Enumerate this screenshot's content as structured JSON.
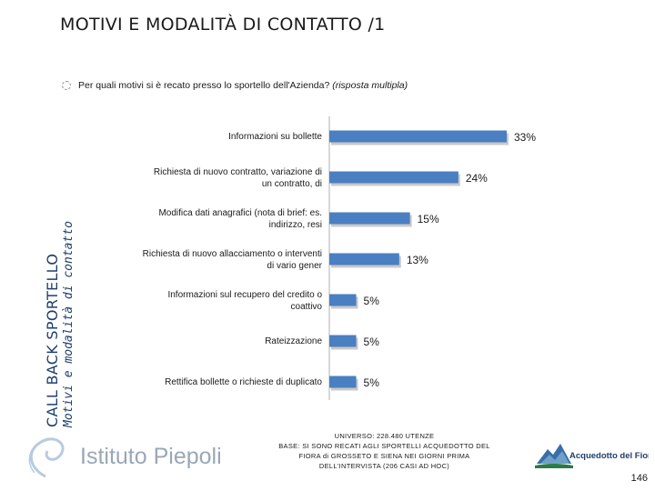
{
  "sidebar": {
    "main": "CALL BACK SPORTELLO",
    "sub": "Motivi e modalità di contatto"
  },
  "page_title": "MOTIVI E MODALITÀ DI CONTATTO /1",
  "question": {
    "text": "Per quali motivi si è recato presso lo sportello dell'Azienda?",
    "note": "(risposta multipla)"
  },
  "chart_data": {
    "type": "bar",
    "orientation": "horizontal",
    "categories": [
      "Informazioni su bollette",
      "Richiesta di nuovo contratto, variazione di un contratto, di",
      "Modifica dati anagrafici (nota di brief: es. indirizzo, resi",
      "Richiesta di nuovo allacciamento o interventi di vario gener",
      "Informazioni sul recupero del credito o coattivo",
      "Rateizzazione",
      "Rettifica bollette o richieste di duplicato"
    ],
    "category_lines": [
      [
        "Informazioni su bollette"
      ],
      [
        "Richiesta di nuovo contratto, variazione di",
        "un contratto, di"
      ],
      [
        "Modifica dati anagrafici (nota di brief: es.",
        "indirizzo, resi"
      ],
      [
        "Richiesta di nuovo allacciamento o interventi",
        "di vario gener"
      ],
      [
        "Informazioni sul recupero del credito o",
        "coattivo"
      ],
      [
        "Rateizzazione"
      ],
      [
        "Rettifica bollette o richieste di duplicato"
      ]
    ],
    "values": [
      33,
      24,
      15,
      13,
      5,
      5,
      5
    ],
    "value_labels": [
      "33%",
      "24%",
      "15%",
      "13%",
      "5%",
      "5%",
      "5%"
    ],
    "xlim": [
      0,
      33
    ],
    "bar_color": "#4a7fc1",
    "grid": false
  },
  "footer": {
    "left_logo": "Istituto Piepoli",
    "universo": [
      "UNIVERSO: 228.480 UTENZE",
      "BASE: SI SONO RECATI AGLI SPORTELLI ACQUEDOTTO DEL",
      "FIORA di GROSSETO E SIENA NEI GIORNI PRIMA",
      "DELL'INTERVISTA (206 CASI AD HOC)"
    ],
    "right_logo": "Acquedotto del Fiora",
    "page_number": "146"
  },
  "colors": {
    "accent": "#1f3e6b",
    "bar": "#4a7fc1"
  }
}
